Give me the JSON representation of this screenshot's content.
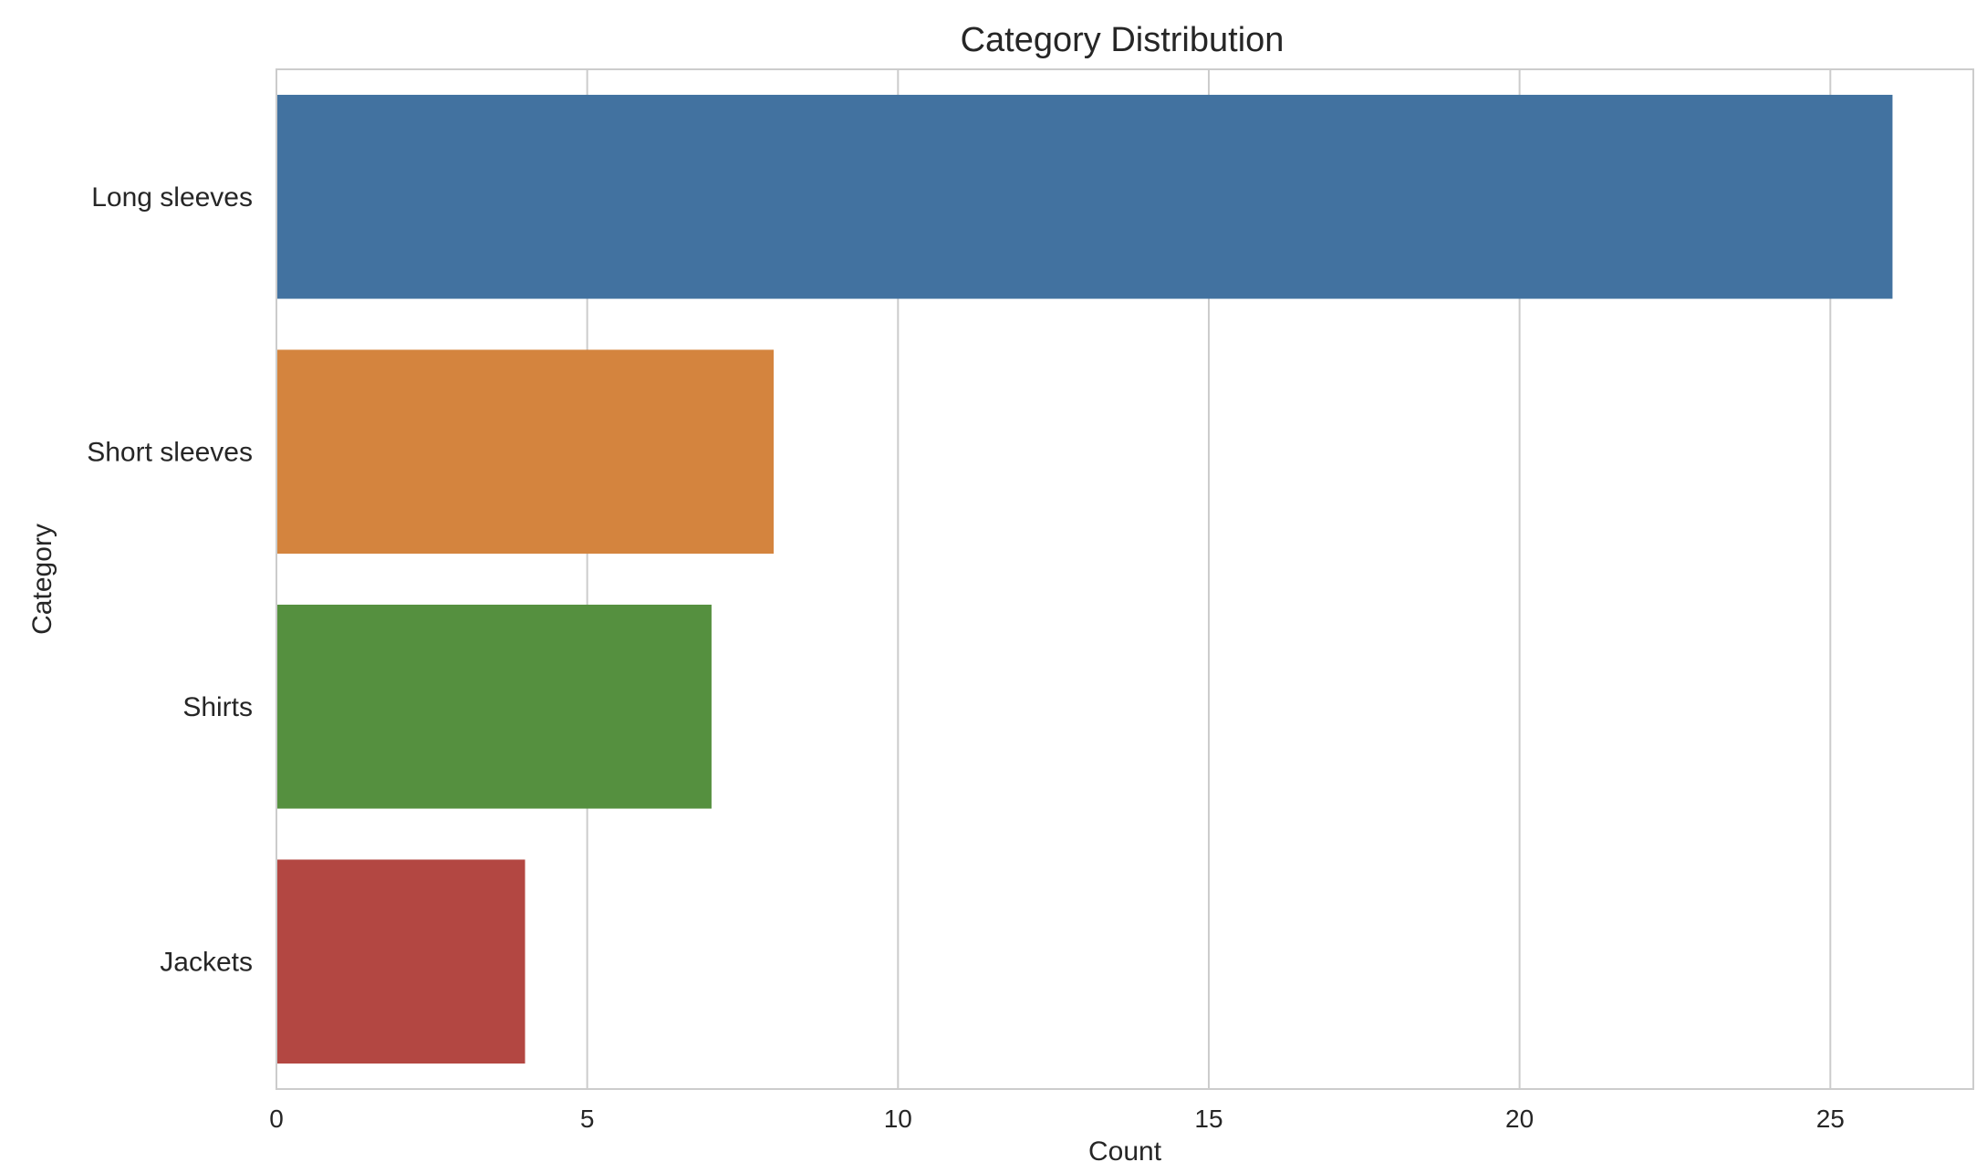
{
  "chart_data": {
    "type": "bar",
    "orientation": "horizontal",
    "title": "Category Distribution",
    "xlabel": "Count",
    "ylabel": "Category",
    "categories": [
      "Long sleeves",
      "Short sleeves",
      "Shirts",
      "Jackets"
    ],
    "values": [
      26,
      8,
      7,
      4
    ],
    "colors": [
      "#4272a0",
      "#d4843e",
      "#55903f",
      "#b34742"
    ],
    "xlim": [
      0,
      27.3
    ],
    "xticks": [
      0,
      5,
      10,
      15,
      20,
      25
    ],
    "xtick_labels": [
      "0",
      "5",
      "10",
      "15",
      "20",
      "25"
    ],
    "grid": true,
    "grid_axis": "x",
    "grid_color": "#cccccc",
    "frame_color": "#cccccc",
    "text_color": "#262626"
  }
}
